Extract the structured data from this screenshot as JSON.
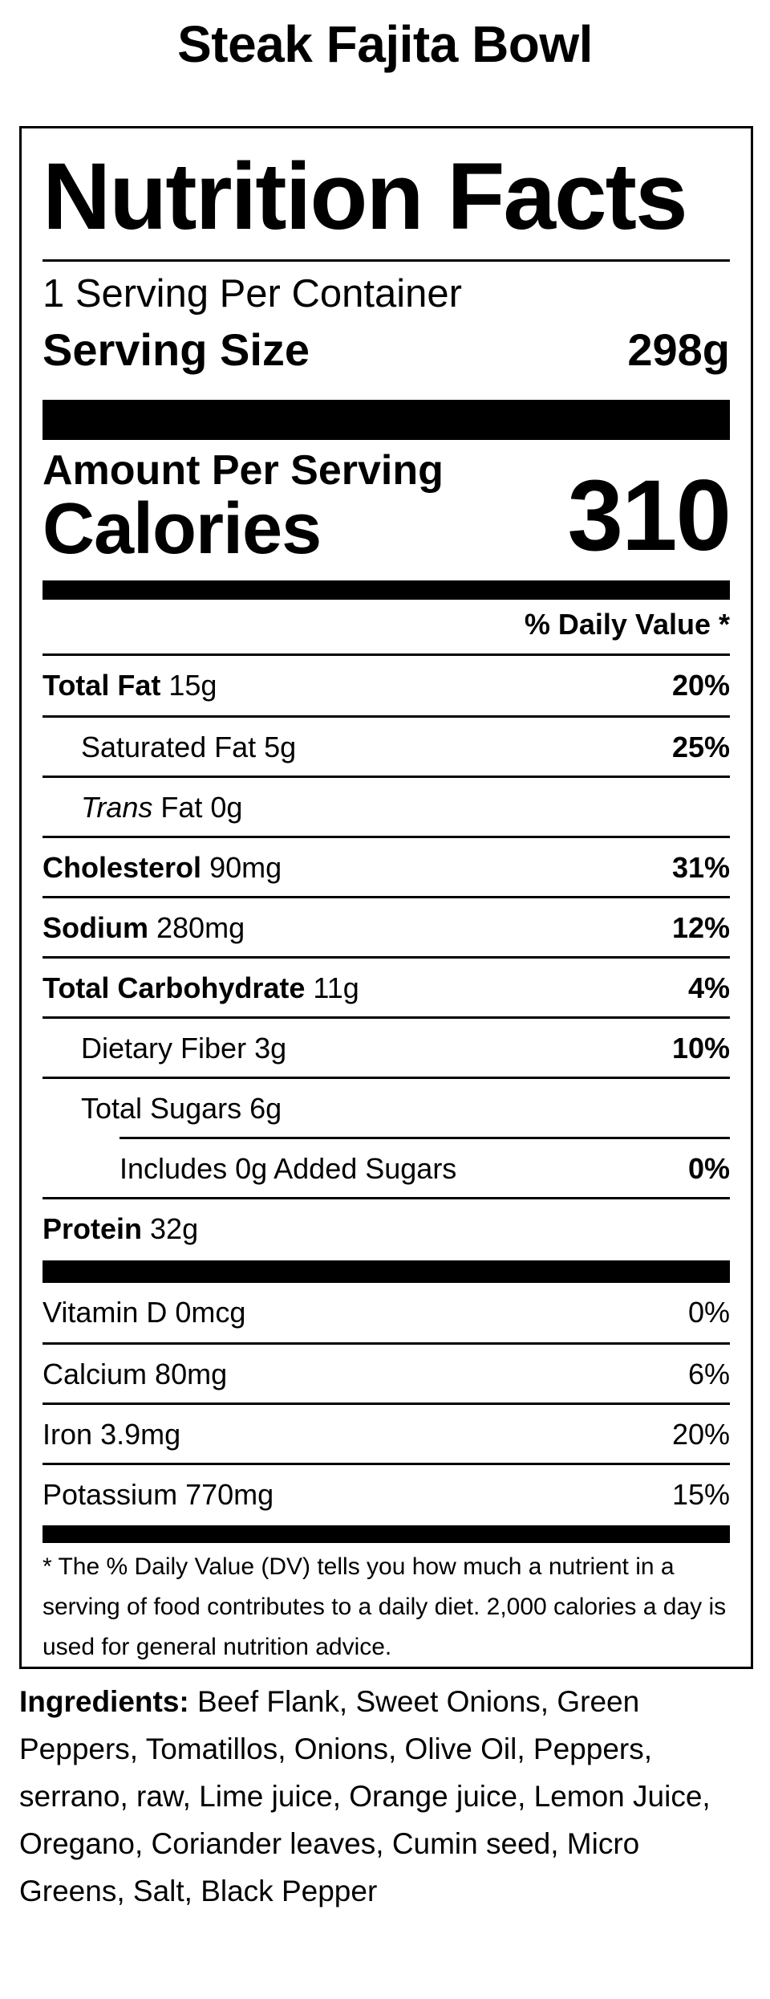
{
  "product": {
    "name": "Steak Fajita Bowl"
  },
  "label": {
    "title": "Nutrition Facts",
    "servings_per_container": "1 Serving Per Container",
    "serving_size_label": "Serving Size",
    "serving_size_value": "298g",
    "amount_per_serving": "Amount Per Serving",
    "calories_label": "Calories",
    "calories_value": "310",
    "daily_value_header": "% Daily Value *",
    "nutrients": [
      {
        "name": "Total Fat",
        "amount": "15g",
        "dv": "20%"
      },
      {
        "name": "Saturated Fat",
        "amount": "5g",
        "dv": "25%"
      },
      {
        "name": "Trans",
        "suffix": "Fat",
        "amount": "0g",
        "dv": ""
      },
      {
        "name": "Cholesterol",
        "amount": "90mg",
        "dv": "31%"
      },
      {
        "name": "Sodium",
        "amount": "280mg",
        "dv": "12%"
      },
      {
        "name": "Total Carbohydrate",
        "amount": "11g",
        "dv": "4%"
      },
      {
        "name": "Dietary Fiber",
        "amount": "3g",
        "dv": "10%"
      },
      {
        "name": "Total Sugars",
        "amount": "6g",
        "dv": ""
      },
      {
        "name": "Includes 0g Added Sugars",
        "amount": "",
        "dv": "0%"
      },
      {
        "name": "Protein",
        "amount": "32g",
        "dv": ""
      }
    ],
    "vitamins": [
      {
        "name": "Vitamin D",
        "amount": "0mcg",
        "dv": "0%"
      },
      {
        "name": "Calcium",
        "amount": "80mg",
        "dv": "6%"
      },
      {
        "name": "Iron",
        "amount": "3.9mg",
        "dv": "20%"
      },
      {
        "name": "Potassium",
        "amount": "770mg",
        "dv": "15%"
      }
    ],
    "footnote": "* The % Daily Value (DV) tells you how much a nutrient in a serving of food contributes to a daily diet. 2,000 calories a day is used for general nutrition advice."
  },
  "ingredients": {
    "label": "Ingredients:",
    "text": "Beef Flank, Sweet Onions, Green Peppers, Tomatillos, Onions, Olive Oil, Peppers, serrano, raw, Lime juice, Orange juice, Lemon Juice, Oregano, Coriander leaves, Cumin seed, Micro Greens, Salt, Black Pepper"
  }
}
